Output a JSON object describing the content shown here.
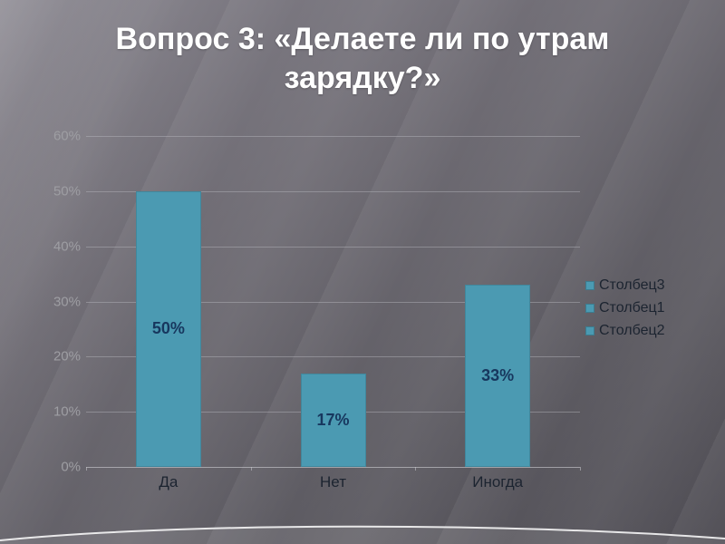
{
  "slide": {
    "title": "Вопрос 3: «Делаете ли по утрам зарядку?»"
  },
  "chart_data": {
    "type": "bar",
    "title": "",
    "categories": [
      "Да",
      "Нет",
      "Иногда"
    ],
    "values": [
      50,
      17,
      33
    ],
    "data_labels": [
      "50%",
      "17%",
      "33%"
    ],
    "legend": [
      "Столбец3",
      "Столбец1",
      "Столбец2"
    ],
    "legend_position": "right",
    "grid": true,
    "ylim": [
      0,
      60
    ],
    "ytick_step": 10,
    "ytick_labels": [
      "0%",
      "10%",
      "20%",
      "30%",
      "40%",
      "50%",
      "60%"
    ],
    "bar_color": "#4b9ab2",
    "data_label_color": "#17375e",
    "axis_text_color": "#9e9ea3",
    "category_text_color": "#1c2430"
  }
}
